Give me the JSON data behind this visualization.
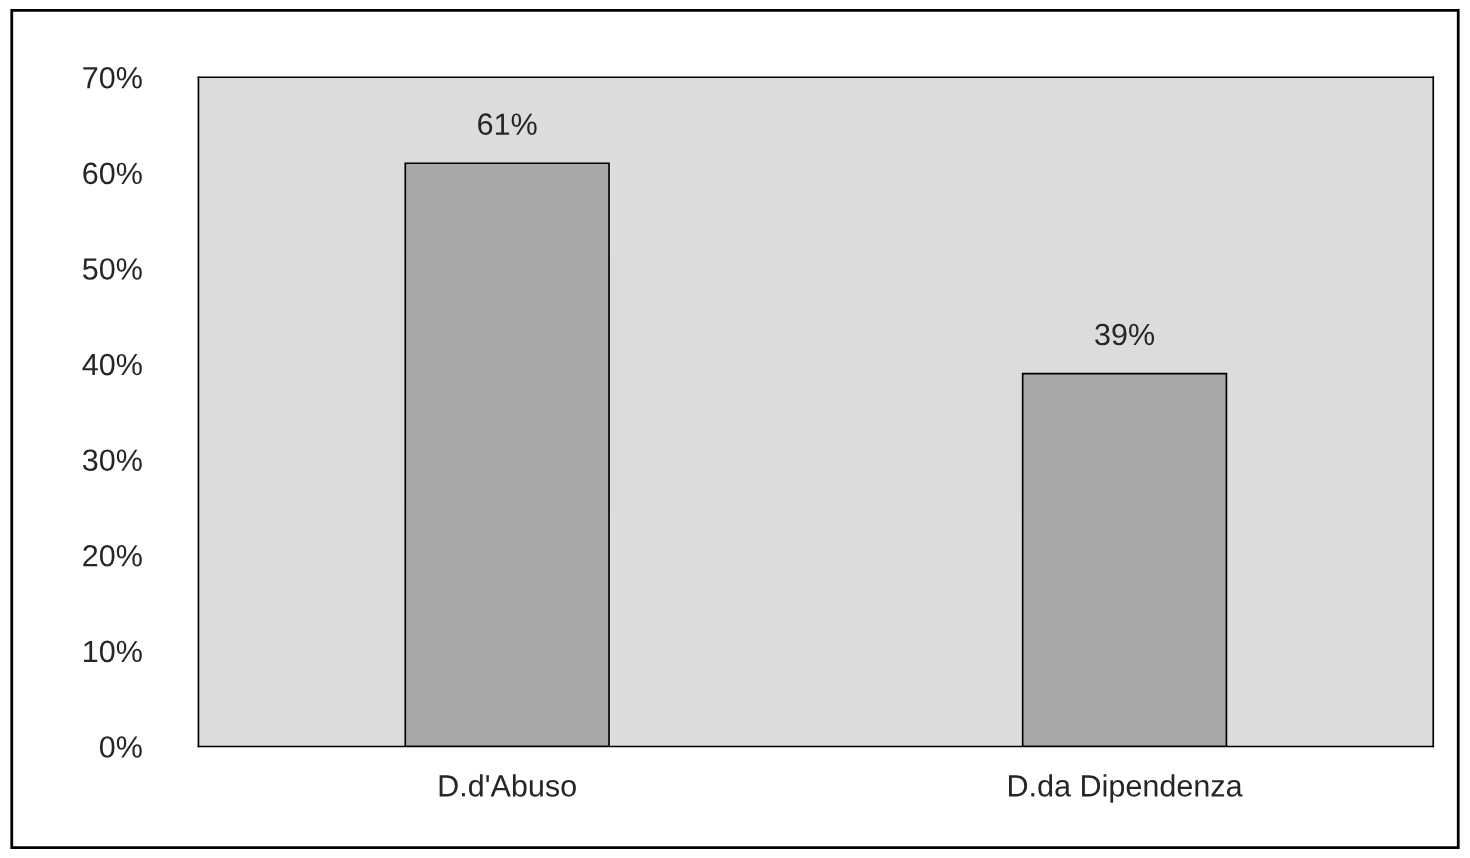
{
  "chart_data": {
    "type": "bar",
    "categories": [
      "D.d'Abuso",
      "D.da Dipendenza"
    ],
    "values": [
      61,
      39
    ],
    "value_labels": [
      "61%",
      "39%"
    ],
    "color": "#a8a8a8",
    "ylim": [
      0,
      70
    ],
    "yticks": [
      {
        "value": 0,
        "label": "0%"
      },
      {
        "value": 10,
        "label": "10%"
      },
      {
        "value": 20,
        "label": "20%"
      },
      {
        "value": 30,
        "label": "30%"
      },
      {
        "value": 40,
        "label": "40%"
      },
      {
        "value": 50,
        "label": "50%"
      },
      {
        "value": 60,
        "label": "60%"
      },
      {
        "value": 70,
        "label": "70%"
      }
    ],
    "grid": false,
    "legend": false
  }
}
